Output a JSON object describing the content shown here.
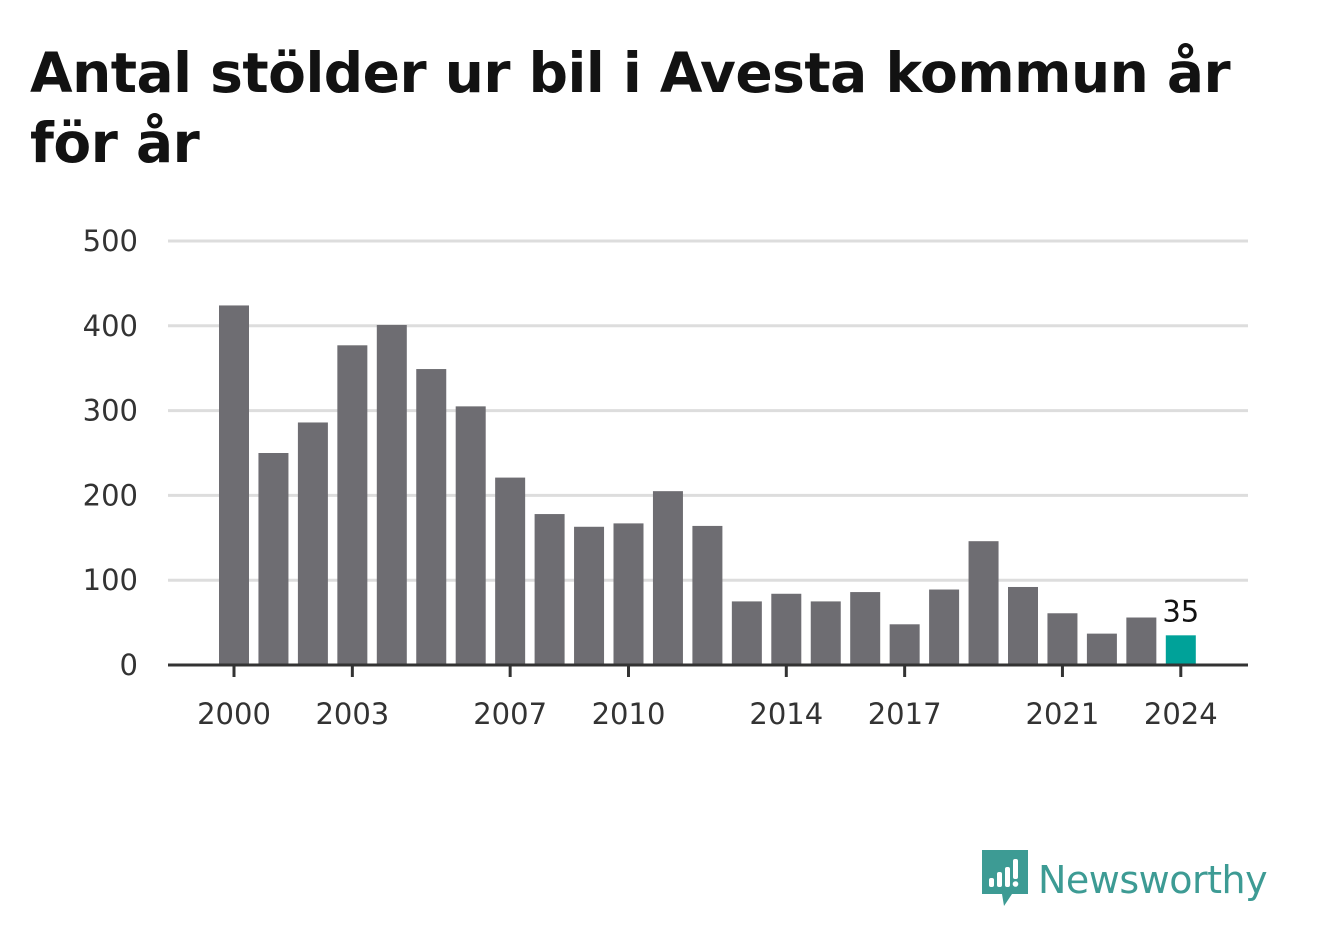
{
  "title": "Antal stölder ur bil i Avesta kommun år för år",
  "brand": {
    "name": "Newsworthy",
    "icon": "newsworthy-logo-icon",
    "color": "#3d9b94"
  },
  "colors": {
    "bar": "#6e6d72",
    "highlight": "#00a299",
    "grid": "#dddddd",
    "axis": "#333333"
  },
  "chart_data": {
    "type": "bar",
    "title": "Antal stölder ur bil i Avesta kommun år för år",
    "categories": [
      "2000",
      "2001",
      "2002",
      "2003",
      "2004",
      "2005",
      "2006",
      "2007",
      "2008",
      "2009",
      "2010",
      "2011",
      "2012",
      "2013",
      "2014",
      "2015",
      "2016",
      "2017",
      "2018",
      "2019",
      "2020",
      "2021",
      "2022",
      "2023",
      "2024"
    ],
    "values": [
      424,
      250,
      286,
      377,
      401,
      349,
      305,
      221,
      178,
      163,
      167,
      205,
      164,
      75,
      84,
      75,
      86,
      48,
      89,
      146,
      92,
      61,
      37,
      56,
      35
    ],
    "x_tick_labels": [
      "2000",
      "2003",
      "2007",
      "2010",
      "2014",
      "2017",
      "2021",
      "2024"
    ],
    "y_ticks": [
      0,
      100,
      200,
      300,
      400,
      500
    ],
    "ylim": [
      0,
      500
    ],
    "highlight": {
      "category": "2024",
      "label": "35"
    },
    "grid": true,
    "legend": "none",
    "xlabel": "",
    "ylabel": ""
  }
}
